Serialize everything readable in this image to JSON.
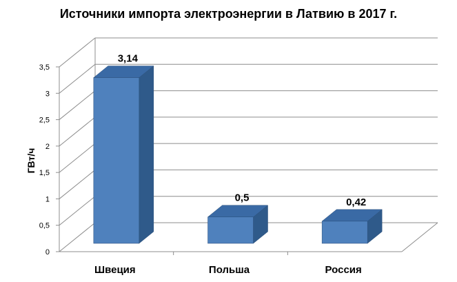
{
  "chart_data": {
    "type": "bar",
    "title": "Источники импорта электроэнергии в Латвию в 2017 г.",
    "xlabel": "",
    "ylabel": "ГВт/ч",
    "categories": [
      "Швеция",
      "Польша",
      "Россия"
    ],
    "values": [
      3.14,
      0.5,
      0.42
    ],
    "data_labels": [
      "3,14",
      "0,5",
      "0,42"
    ],
    "ylim": [
      0,
      3.5
    ],
    "y_ticks": [
      0,
      0.5,
      1,
      1.5,
      2,
      2.5,
      3,
      3.5
    ],
    "y_tick_labels": [
      "0",
      "0,5",
      "1",
      "1,5",
      "2",
      "2,5",
      "3",
      "3,5"
    ],
    "grid": true,
    "style": "3d",
    "legend": "none",
    "colors": {
      "bar_front": "#4f81bd",
      "bar_side": "#2f5a8a",
      "bar_top": "#3a6aa5",
      "bar_edge": "#2b4f7a",
      "grid": "#8c8c8c"
    }
  }
}
